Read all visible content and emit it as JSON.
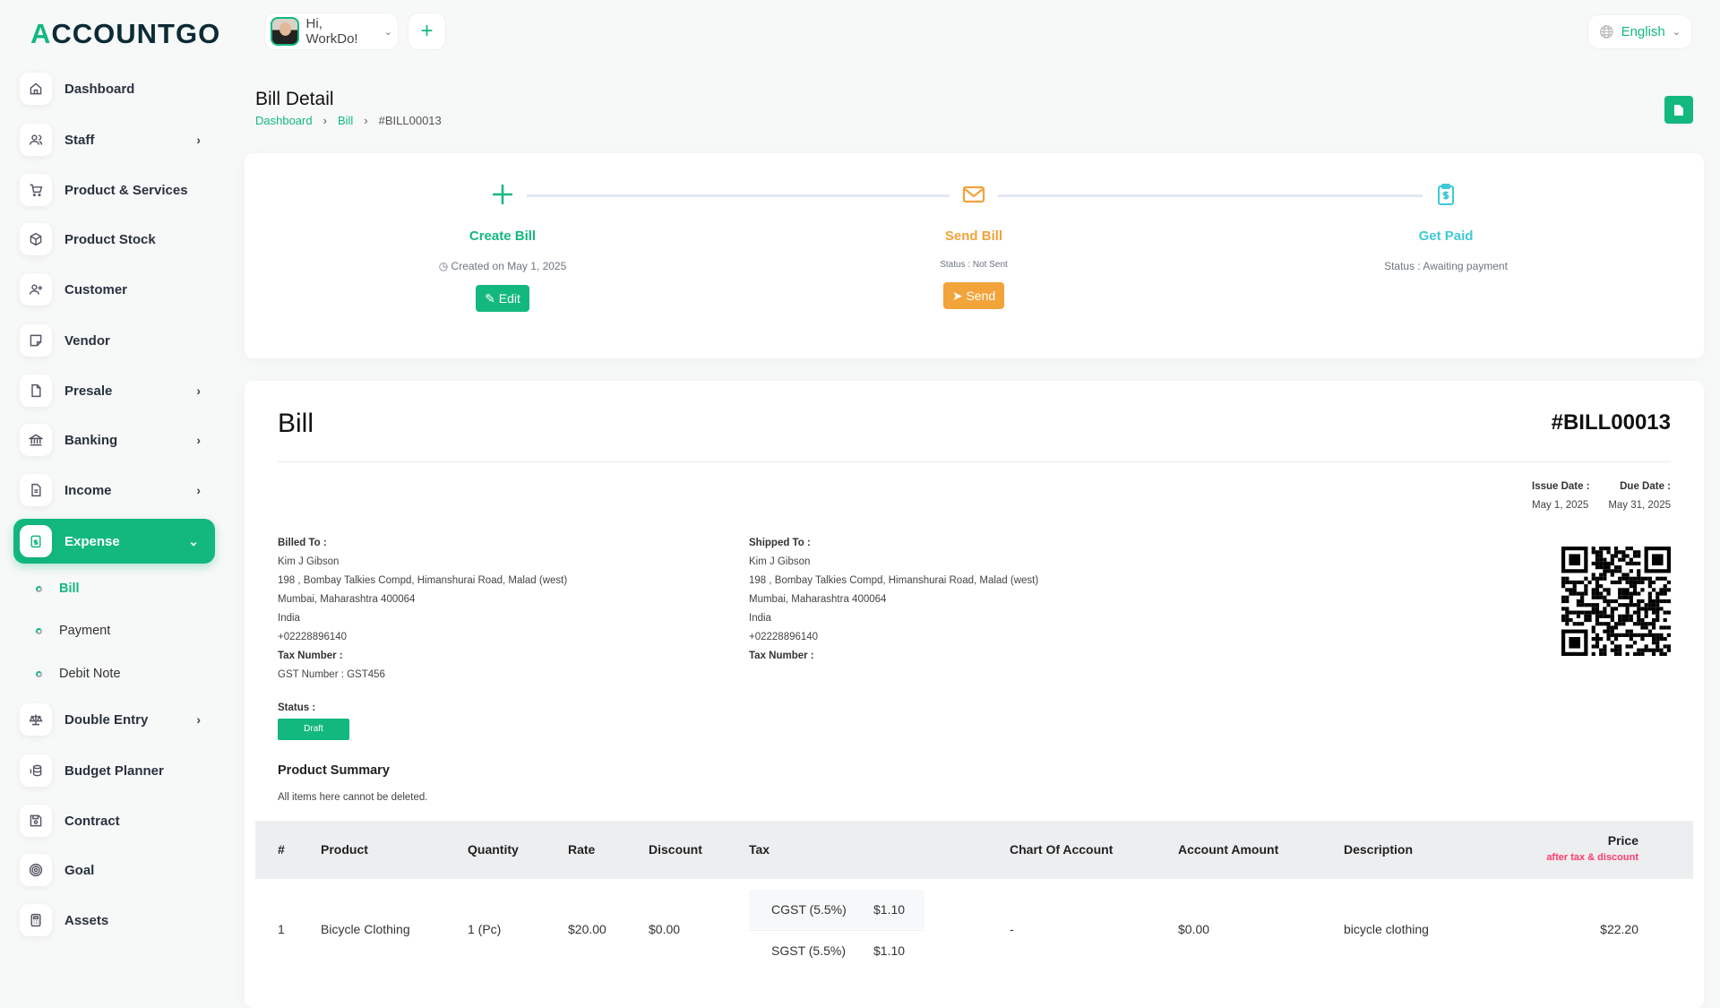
{
  "brand": {
    "logo": "ACCOUNTGO",
    "accent": "#13b87e"
  },
  "header": {
    "user_greeting": "Hi, WorkDo!",
    "language": "English"
  },
  "sidebar": {
    "items": [
      {
        "label": "Dashboard",
        "icon": "home-icon"
      },
      {
        "label": "Staff",
        "icon": "users-icon",
        "chevron": true
      },
      {
        "label": "Product & Services",
        "icon": "cart-icon"
      },
      {
        "label": "Product Stock",
        "icon": "box-icon"
      },
      {
        "label": "Customer",
        "icon": "user-plus-icon"
      },
      {
        "label": "Vendor",
        "icon": "note-icon"
      },
      {
        "label": "Presale",
        "icon": "file-icon",
        "chevron": true
      },
      {
        "label": "Banking",
        "icon": "bank-icon",
        "chevron": true
      },
      {
        "label": "Income",
        "icon": "file-text-icon",
        "chevron": true
      },
      {
        "label": "Expense",
        "icon": "clipboard-dollar-icon",
        "active": true
      },
      {
        "label": "Double Entry",
        "icon": "scale-icon",
        "chevron": true
      },
      {
        "label": "Budget Planner",
        "icon": "coins-icon"
      },
      {
        "label": "Contract",
        "icon": "floppy-icon"
      },
      {
        "label": "Goal",
        "icon": "target-icon"
      },
      {
        "label": "Assets",
        "icon": "calculator-icon"
      }
    ],
    "expense_sub": [
      "Bill",
      "Payment",
      "Debit Note"
    ]
  },
  "page": {
    "title": "Bill Detail",
    "breadcrumb": [
      "Dashboard",
      "Bill",
      "#BILL00013"
    ]
  },
  "steps": [
    {
      "label": "Create Bill",
      "sub": "Created on May 1, 2025",
      "button": "Edit",
      "color": "#13b87e"
    },
    {
      "label": "Send Bill",
      "sub": "Status : Not Sent",
      "button": "Send",
      "color": "#f2a33a"
    },
    {
      "label": "Get Paid",
      "sub": "Status : Awaiting payment",
      "color": "#3ec9d6"
    }
  ],
  "bill": {
    "title": "Bill",
    "number": "#BILL00013",
    "issue_label": "Issue Date :",
    "issue_date": "May 1, 2025",
    "due_label": "Due Date :",
    "due_date": "May 31, 2025",
    "billed": {
      "label": "Billed To :",
      "name": "Kim J Gibson",
      "addr1": "198 , Bombay Talkies Compd, Himanshurai Road, Malad (west)",
      "addr2": "Mumbai, Maharashtra 400064",
      "country": "India",
      "phone": "+02228896140",
      "tax_label": "Tax Number :",
      "gst": "GST Number : GST456"
    },
    "shipped": {
      "label": "Shipped To :",
      "name": "Kim J Gibson",
      "addr1": "198 , Bombay Talkies Compd, Himanshurai Road, Malad (west)",
      "addr2": "Mumbai, Maharashtra 400064",
      "country": "India",
      "phone": "+02228896140",
      "tax_label": "Tax Number :"
    },
    "status_label": "Status :",
    "status": "Draft",
    "summary_title": "Product Summary",
    "summary_note": "All items here cannot be deleted."
  },
  "table": {
    "headers": [
      "#",
      "Product",
      "Quantity",
      "Rate",
      "Discount",
      "Tax",
      "Chart Of Account",
      "Account Amount",
      "Description",
      "Price"
    ],
    "price_note": "after tax & discount",
    "rows": [
      {
        "n": "1",
        "product": "Bicycle Clothing",
        "qty": "1 (Pc)",
        "rate": "$20.00",
        "discount": "$0.00",
        "taxes": [
          {
            "name": "CGST (5.5%%)",
            "amt": "$1.10"
          },
          {
            "name": "SGST (5.5%%)",
            "amt": "$1.10"
          }
        ],
        "chart": "-",
        "account_amount": "$0.00",
        "description": "bicycle clothing",
        "price": "$22.20"
      }
    ]
  }
}
